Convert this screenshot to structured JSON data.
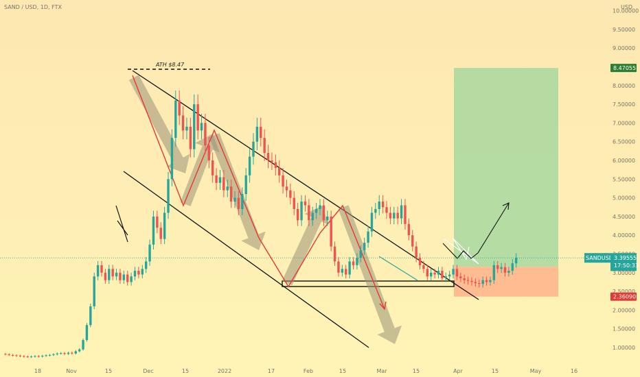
{
  "header": {
    "title": "SAND / USD, 1D, FTX"
  },
  "colors": {
    "up": "#26a69a",
    "down": "#ef5350",
    "profit": "#a8d8a0",
    "loss": "#ffb38a",
    "bg_top": "#fde9b0",
    "bg_bottom": "#fff5b8"
  },
  "chart_data": {
    "type": "candlestick",
    "title": "SAND / USD, 1D, FTX",
    "currency": "USD",
    "ylim": [
      0.65,
      10.45
    ],
    "x_tick_labels": [
      "18",
      "Nov",
      "15",
      "Dec",
      "15",
      "2022",
      "17",
      "Feb",
      "15",
      "Mar",
      "15",
      "Apr",
      "15",
      "May",
      "16"
    ],
    "y_tick_labels": [
      "10.00000",
      "9.50000",
      "9.00000",
      "8.50000",
      "8.00000",
      "7.50000",
      "7.00000",
      "6.50000",
      "6.00000",
      "5.50000",
      "5.00000",
      "4.50000",
      "4.00000",
      "3.50000",
      "3.00000",
      "2.50000",
      "2.00000",
      "1.50000",
      "1.00000"
    ],
    "y_ticks": [
      10.0,
      9.5,
      9.0,
      8.5,
      8.0,
      7.5,
      7.0,
      6.5,
      6.0,
      5.5,
      5.0,
      4.5,
      4.0,
      3.5,
      3.0,
      2.5,
      2.0,
      1.5,
      1.0
    ],
    "closes": [
      0.82,
      0.8,
      0.79,
      0.78,
      0.77,
      0.76,
      0.75,
      0.76,
      0.77,
      0.76,
      0.78,
      0.79,
      0.8,
      0.82,
      0.84,
      0.85,
      0.83,
      0.86,
      0.84,
      0.9,
      0.95,
      1.2,
      1.6,
      2.1,
      2.9,
      3.2,
      3.0,
      2.8,
      3.1,
      2.9,
      3.0,
      2.8,
      2.95,
      2.75,
      2.9,
      3.05,
      2.95,
      3.1,
      3.3,
      3.75,
      4.5,
      4.2,
      3.9,
      4.6,
      5.5,
      6.6,
      7.6,
      7.2,
      6.8,
      6.9,
      6.3,
      7.5,
      6.8,
      7.0,
      6.4,
      6.0,
      5.6,
      5.4,
      5.55,
      5.2,
      5.3,
      4.9,
      5.0,
      4.7,
      5.1,
      5.6,
      6.1,
      6.5,
      6.9,
      6.6,
      6.2,
      6.0,
      5.95,
      5.8,
      5.6,
      5.3,
      5.2,
      5.0,
      4.7,
      4.4,
      4.9,
      4.8,
      4.4,
      4.6,
      4.7,
      4.8,
      4.4,
      4.5,
      3.7,
      3.3,
      3.0,
      3.1,
      2.95,
      3.3,
      3.2,
      3.4,
      3.6,
      3.8,
      4.1,
      4.6,
      4.7,
      4.9,
      4.75,
      4.6,
      4.45,
      4.6,
      4.45,
      4.8,
      4.3,
      4.0,
      3.7,
      3.4,
      3.2,
      3.1,
      2.9,
      3.0,
      2.95,
      3.05,
      2.85,
      2.9,
      2.95,
      3.1,
      2.9,
      2.85,
      2.8,
      2.78,
      2.75,
      2.72,
      2.7,
      2.8,
      2.75,
      2.8,
      3.2,
      3.1,
      3.15,
      3.0,
      3.05,
      3.25,
      3.4
    ],
    "series_name": "SANDUSD",
    "last_price": 3.39555,
    "last_price_label": "3.39555",
    "countdown": "17:50:33",
    "annotations": {
      "ath_label": "ATH $8.47",
      "ath_value": 8.47,
      "target_value": 8.47055,
      "target_label": "8.47055",
      "entry_value": 3.15715,
      "entry_label": "3.15715",
      "stop_value": 2.3609,
      "stop_label": "2.36090"
    },
    "grid": false
  }
}
